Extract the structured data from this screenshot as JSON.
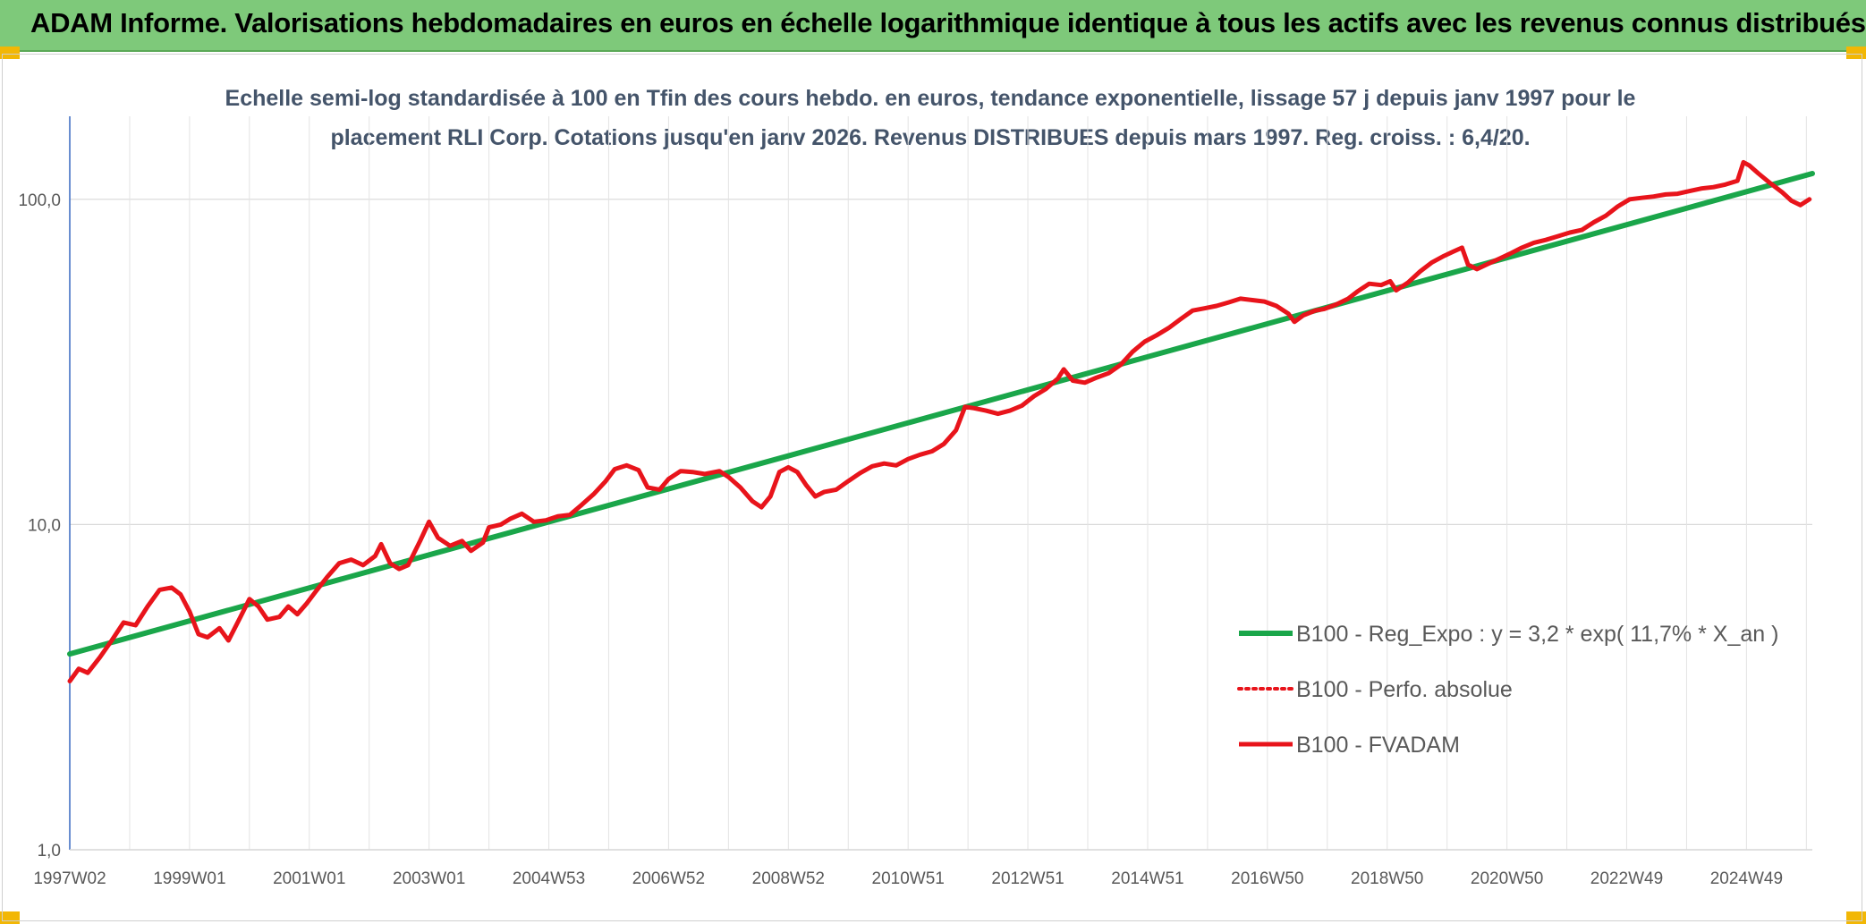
{
  "header": {
    "title": "ADAM Informe. Valorisations hebdomadaires en euros en échelle logarithmique identique à tous les actifs avec les revenus connus distribués"
  },
  "colors": {
    "banner": "#7ec97a",
    "trend": "#1aa64a",
    "series": "#e8141b",
    "accent_corner": "#f2b705"
  },
  "chart_data": {
    "type": "line",
    "title": "Echelle semi-log standardisée à 100 en Tfin des cours hebdo. en euros, tendance exponentielle, lissage 57 j depuis janv 1997 pour le placement RLI Corp. Cotations jusqu'en janv 2026. Revenus DISTRIBUES depuis mars 1997. Reg. croiss. : 6,4/20.",
    "title_lines": [
      "Echelle semi-log standardisée à 100 en Tfin des cours hebdo. en euros, tendance exponentielle, lissage 57 j depuis janv 1997 pour le",
      "placement RLI Corp. Cotations jusqu'en janv 2026. Revenus DISTRIBUES depuis mars 1997. Reg. croiss. : 6,4/20."
    ],
    "y_scale": "log",
    "ylim": [
      1,
      180
    ],
    "y_ticks": [
      {
        "value": 1,
        "label": "1,0"
      },
      {
        "value": 10,
        "label": "10,0"
      },
      {
        "value": 100,
        "label": "100,0"
      }
    ],
    "xlim": [
      1997.0,
      2026.1
    ],
    "x_ticks": [
      {
        "value": 1997.0,
        "label": "1997W02"
      },
      {
        "value": 1999.0,
        "label": "1999W01"
      },
      {
        "value": 2001.0,
        "label": "2001W01"
      },
      {
        "value": 2003.0,
        "label": "2003W01"
      },
      {
        "value": 2005.0,
        "label": "2004W53"
      },
      {
        "value": 2007.0,
        "label": "2006W52"
      },
      {
        "value": 2009.0,
        "label": "2008W52"
      },
      {
        "value": 2011.0,
        "label": "2010W51"
      },
      {
        "value": 2013.0,
        "label": "2012W51"
      },
      {
        "value": 2015.0,
        "label": "2014W51"
      },
      {
        "value": 2017.0,
        "label": "2016W50"
      },
      {
        "value": 2019.0,
        "label": "2018W50"
      },
      {
        "value": 2021.0,
        "label": "2020W50"
      },
      {
        "value": 2023.0,
        "label": "2022W49"
      },
      {
        "value": 2025.0,
        "label": "2024W49"
      }
    ],
    "grid": true,
    "legend_position": "bottom-right",
    "series": [
      {
        "name": "B100 - Reg_Expo : y = 3,2 * exp( 11,7% *  X_an )",
        "style": "solid-thick",
        "color": "#1aa64a",
        "points": [
          [
            1997.0,
            4.0
          ],
          [
            2026.1,
            120.0
          ]
        ]
      },
      {
        "name": "B100 - Perfo. absolue",
        "style": "dotted",
        "color": "#e8141b",
        "points": []
      },
      {
        "name": "B100 - FVADAM",
        "style": "solid",
        "color": "#e8141b",
        "points": [
          [
            1997.0,
            3.3
          ],
          [
            1997.15,
            3.6
          ],
          [
            1997.3,
            3.5
          ],
          [
            1997.5,
            3.9
          ],
          [
            1997.7,
            4.4
          ],
          [
            1997.9,
            5.0
          ],
          [
            1998.1,
            4.9
          ],
          [
            1998.3,
            5.6
          ],
          [
            1998.5,
            6.3
          ],
          [
            1998.7,
            6.4
          ],
          [
            1998.85,
            6.1
          ],
          [
            1999.0,
            5.4
          ],
          [
            1999.15,
            4.6
          ],
          [
            1999.3,
            4.5
          ],
          [
            1999.5,
            4.8
          ],
          [
            1999.65,
            4.4
          ],
          [
            1999.85,
            5.2
          ],
          [
            2000.0,
            5.9
          ],
          [
            2000.15,
            5.6
          ],
          [
            2000.3,
            5.1
          ],
          [
            2000.5,
            5.2
          ],
          [
            2000.65,
            5.6
          ],
          [
            2000.8,
            5.3
          ],
          [
            2000.95,
            5.7
          ],
          [
            2001.1,
            6.2
          ],
          [
            2001.3,
            6.9
          ],
          [
            2001.5,
            7.6
          ],
          [
            2001.7,
            7.8
          ],
          [
            2001.9,
            7.5
          ],
          [
            2002.1,
            8.0
          ],
          [
            2002.2,
            8.7
          ],
          [
            2002.35,
            7.6
          ],
          [
            2002.5,
            7.3
          ],
          [
            2002.65,
            7.5
          ],
          [
            2002.85,
            8.9
          ],
          [
            2003.0,
            10.2
          ],
          [
            2003.15,
            9.1
          ],
          [
            2003.35,
            8.6
          ],
          [
            2003.55,
            8.9
          ],
          [
            2003.7,
            8.3
          ],
          [
            2003.9,
            8.8
          ],
          [
            2004.0,
            9.8
          ],
          [
            2004.2,
            10.0
          ],
          [
            2004.35,
            10.4
          ],
          [
            2004.55,
            10.8
          ],
          [
            2004.75,
            10.2
          ],
          [
            2004.95,
            10.3
          ],
          [
            2005.15,
            10.6
          ],
          [
            2005.35,
            10.7
          ],
          [
            2005.55,
            11.5
          ],
          [
            2005.75,
            12.4
          ],
          [
            2005.95,
            13.6
          ],
          [
            2006.1,
            14.8
          ],
          [
            2006.3,
            15.2
          ],
          [
            2006.5,
            14.7
          ],
          [
            2006.65,
            13.0
          ],
          [
            2006.85,
            12.8
          ],
          [
            2007.0,
            13.8
          ],
          [
            2007.2,
            14.6
          ],
          [
            2007.4,
            14.5
          ],
          [
            2007.6,
            14.3
          ],
          [
            2007.85,
            14.6
          ],
          [
            2008.0,
            14.0
          ],
          [
            2008.2,
            13.0
          ],
          [
            2008.4,
            11.8
          ],
          [
            2008.55,
            11.3
          ],
          [
            2008.7,
            12.2
          ],
          [
            2008.85,
            14.5
          ],
          [
            2009.0,
            15.0
          ],
          [
            2009.15,
            14.5
          ],
          [
            2009.3,
            13.2
          ],
          [
            2009.45,
            12.2
          ],
          [
            2009.6,
            12.6
          ],
          [
            2009.8,
            12.8
          ],
          [
            2010.0,
            13.6
          ],
          [
            2010.2,
            14.4
          ],
          [
            2010.4,
            15.1
          ],
          [
            2010.6,
            15.4
          ],
          [
            2010.8,
            15.2
          ],
          [
            2011.0,
            15.9
          ],
          [
            2011.2,
            16.4
          ],
          [
            2011.4,
            16.8
          ],
          [
            2011.6,
            17.7
          ],
          [
            2011.8,
            19.5
          ],
          [
            2011.95,
            23.0
          ],
          [
            2012.1,
            22.8
          ],
          [
            2012.3,
            22.4
          ],
          [
            2012.5,
            21.9
          ],
          [
            2012.7,
            22.4
          ],
          [
            2012.9,
            23.2
          ],
          [
            2013.1,
            24.8
          ],
          [
            2013.3,
            26.1
          ],
          [
            2013.5,
            28.1
          ],
          [
            2013.6,
            30.0
          ],
          [
            2013.75,
            27.7
          ],
          [
            2013.95,
            27.3
          ],
          [
            2014.15,
            28.3
          ],
          [
            2014.35,
            29.2
          ],
          [
            2014.55,
            31.0
          ],
          [
            2014.75,
            34.0
          ],
          [
            2014.95,
            36.5
          ],
          [
            2015.15,
            38.2
          ],
          [
            2015.35,
            40.2
          ],
          [
            2015.55,
            42.8
          ],
          [
            2015.75,
            45.5
          ],
          [
            2015.95,
            46.2
          ],
          [
            2016.15,
            47.0
          ],
          [
            2016.35,
            48.2
          ],
          [
            2016.55,
            49.5
          ],
          [
            2016.75,
            49.0
          ],
          [
            2016.95,
            48.5
          ],
          [
            2017.15,
            47.0
          ],
          [
            2017.35,
            44.5
          ],
          [
            2017.45,
            42.0
          ],
          [
            2017.6,
            44.0
          ],
          [
            2017.8,
            45.5
          ],
          [
            2017.95,
            46.0
          ],
          [
            2018.15,
            47.5
          ],
          [
            2018.35,
            49.5
          ],
          [
            2018.5,
            52.0
          ],
          [
            2018.7,
            55.0
          ],
          [
            2018.9,
            54.5
          ],
          [
            2019.05,
            56.0
          ],
          [
            2019.15,
            52.5
          ],
          [
            2019.35,
            55.5
          ],
          [
            2019.55,
            60.0
          ],
          [
            2019.75,
            64.0
          ],
          [
            2019.95,
            67.0
          ],
          [
            2020.1,
            69.0
          ],
          [
            2020.25,
            71.0
          ],
          [
            2020.35,
            63.0
          ],
          [
            2020.5,
            61.0
          ],
          [
            2020.7,
            63.5
          ],
          [
            2020.9,
            66.0
          ],
          [
            2021.05,
            68.0
          ],
          [
            2021.25,
            71.0
          ],
          [
            2021.45,
            73.5
          ],
          [
            2021.65,
            75.0
          ],
          [
            2021.85,
            77.0
          ],
          [
            2022.05,
            79.0
          ],
          [
            2022.25,
            80.5
          ],
          [
            2022.45,
            85.0
          ],
          [
            2022.65,
            89.0
          ],
          [
            2022.85,
            95.0
          ],
          [
            2023.05,
            100.0
          ],
          [
            2023.25,
            101.0
          ],
          [
            2023.45,
            102.0
          ],
          [
            2023.65,
            103.5
          ],
          [
            2023.85,
            104.0
          ],
          [
            2024.05,
            106.0
          ],
          [
            2024.25,
            108.0
          ],
          [
            2024.45,
            109.0
          ],
          [
            2024.65,
            111.0
          ],
          [
            2024.85,
            114.0
          ],
          [
            2024.95,
            130.0
          ],
          [
            2025.05,
            127.0
          ],
          [
            2025.2,
            120.0
          ],
          [
            2025.4,
            112.0
          ],
          [
            2025.6,
            105.0
          ],
          [
            2025.75,
            99.0
          ],
          [
            2025.9,
            96.0
          ],
          [
            2026.05,
            100.0
          ]
        ]
      }
    ]
  }
}
